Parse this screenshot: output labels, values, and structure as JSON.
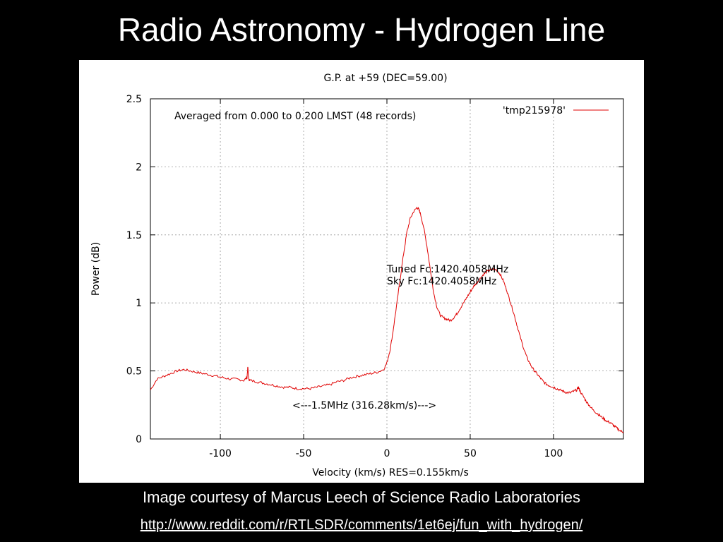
{
  "slide": {
    "title": "Radio Astronomy - Hydrogen Line",
    "caption": "Image courtesy of Marcus Leech of Science Radio Laboratories",
    "link": "http://www.reddit.com/r/RTLSDR/comments/1et6ej/fun_with_hydrogen/"
  },
  "chart_data": {
    "type": "line",
    "title": "G.P. at +59 (DEC=59.00)",
    "xlabel": "Velocity (km/s) RES=0.155km/s",
    "ylabel": "Power (dB)",
    "xlim": [
      -142,
      142
    ],
    "ylim": [
      0,
      2.5
    ],
    "xticks": [
      -100,
      -50,
      0,
      50,
      100
    ],
    "xtick_labels": [
      "-100",
      "-50",
      "0",
      "50",
      "100"
    ],
    "yticks": [
      0,
      0.5,
      1,
      1.5,
      2,
      2.5
    ],
    "ytick_labels": [
      "0",
      "0.5",
      "1",
      "1.5",
      "2",
      "2.5"
    ],
    "grid": true,
    "legend_position": "top-right",
    "annotations": {
      "averaged": "Averaged from 0.000 to 0.200 LMST (48 records)",
      "tuned": "Tuned Fc:1420.4058MHz",
      "sky": "Sky Fc:1420.4058MHz",
      "span": "<---1.5MHz (316.28km/s)--->"
    },
    "series": [
      {
        "name": "'tmp215978'",
        "color": "#e00000",
        "x": [
          -142,
          -138,
          -134,
          -130,
          -126,
          -122,
          -118,
          -114,
          -110,
          -106,
          -102,
          -98,
          -94,
          -90,
          -86,
          -84,
          -83.5,
          -83,
          -82,
          -78,
          -74,
          -70,
          -66,
          -62,
          -58,
          -54,
          -50,
          -46,
          -42,
          -38,
          -34,
          -30,
          -26,
          -22,
          -18,
          -14,
          -10,
          -6,
          -2,
          0,
          2,
          4,
          6,
          8,
          10,
          12,
          14,
          16,
          18,
          19,
          20,
          22,
          24,
          26,
          28,
          30,
          32,
          34,
          36,
          38,
          40,
          42,
          44,
          46,
          48,
          50,
          52,
          54,
          56,
          58,
          60,
          62,
          64,
          66,
          68,
          70,
          72,
          74,
          76,
          78,
          80,
          82,
          84,
          86,
          88,
          90,
          92,
          94,
          96,
          98,
          100,
          102,
          104,
          106,
          108,
          110,
          112,
          114,
          115,
          116,
          118,
          120,
          122,
          124,
          126,
          128,
          130,
          132,
          134,
          136,
          138,
          140,
          142
        ],
        "y": [
          0.36,
          0.44,
          0.46,
          0.48,
          0.5,
          0.51,
          0.5,
          0.49,
          0.48,
          0.47,
          0.46,
          0.45,
          0.44,
          0.44,
          0.43,
          0.45,
          0.53,
          0.44,
          0.43,
          0.42,
          0.41,
          0.4,
          0.39,
          0.38,
          0.38,
          0.37,
          0.37,
          0.37,
          0.38,
          0.39,
          0.4,
          0.42,
          0.43,
          0.45,
          0.46,
          0.47,
          0.48,
          0.49,
          0.51,
          0.56,
          0.66,
          0.82,
          1.0,
          1.18,
          1.36,
          1.52,
          1.62,
          1.67,
          1.7,
          1.69,
          1.66,
          1.56,
          1.42,
          1.25,
          1.08,
          0.97,
          0.91,
          0.89,
          0.88,
          0.87,
          0.89,
          0.92,
          0.96,
          1.0,
          1.04,
          1.08,
          1.12,
          1.15,
          1.18,
          1.21,
          1.23,
          1.24,
          1.25,
          1.24,
          1.21,
          1.16,
          1.09,
          1.01,
          0.93,
          0.84,
          0.75,
          0.67,
          0.6,
          0.55,
          0.51,
          0.48,
          0.45,
          0.42,
          0.4,
          0.39,
          0.38,
          0.37,
          0.36,
          0.35,
          0.34,
          0.34,
          0.35,
          0.36,
          0.38,
          0.35,
          0.31,
          0.27,
          0.24,
          0.21,
          0.19,
          0.17,
          0.15,
          0.13,
          0.12,
          0.1,
          0.08,
          0.06,
          0.05
        ]
      }
    ]
  }
}
